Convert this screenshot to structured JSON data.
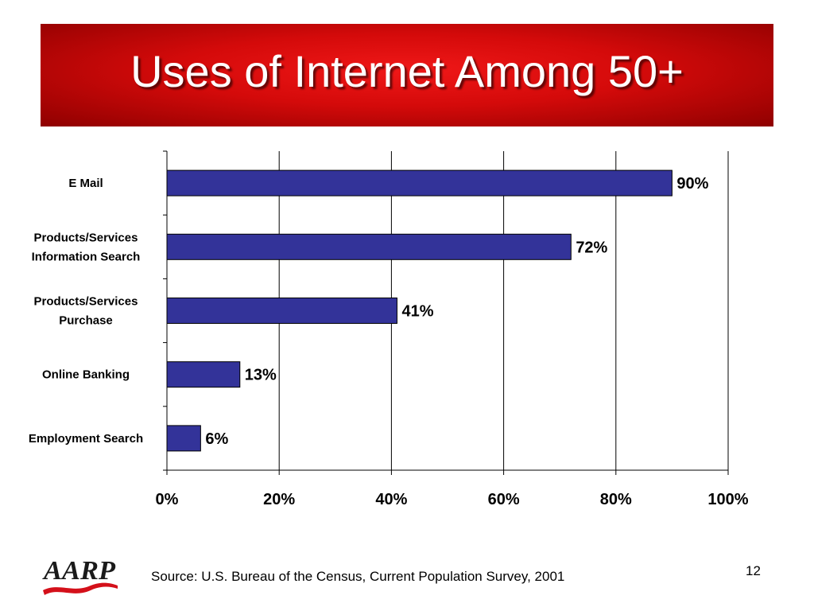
{
  "slide": {
    "title": "Uses of Internet Among 50+",
    "source": "Source: U.S. Bureau of the Census, Current Population Survey, 2001",
    "page_number": "12",
    "logo_text": "AARP"
  },
  "colors": {
    "banner": "#d40a0a",
    "bar_fill": "#333399",
    "gridline": "#000000"
  },
  "chart_data": {
    "type": "bar",
    "orientation": "horizontal",
    "categories": [
      [
        "E Mail"
      ],
      [
        "Products/Services",
        "Information Search"
      ],
      [
        "Products/Services",
        "Purchase"
      ],
      [
        "Online Banking"
      ],
      [
        "Employment Search"
      ]
    ],
    "values": [
      90,
      72,
      41,
      13,
      6
    ],
    "value_labels": [
      "90%",
      "72%",
      "41%",
      "13%",
      "6%"
    ],
    "xlim": [
      0,
      100
    ],
    "x_ticks": [
      0,
      20,
      40,
      60,
      80,
      100
    ],
    "x_tick_labels": [
      "0%",
      "20%",
      "40%",
      "60%",
      "80%",
      "100%"
    ],
    "grid": "vertical",
    "legend": "none"
  }
}
